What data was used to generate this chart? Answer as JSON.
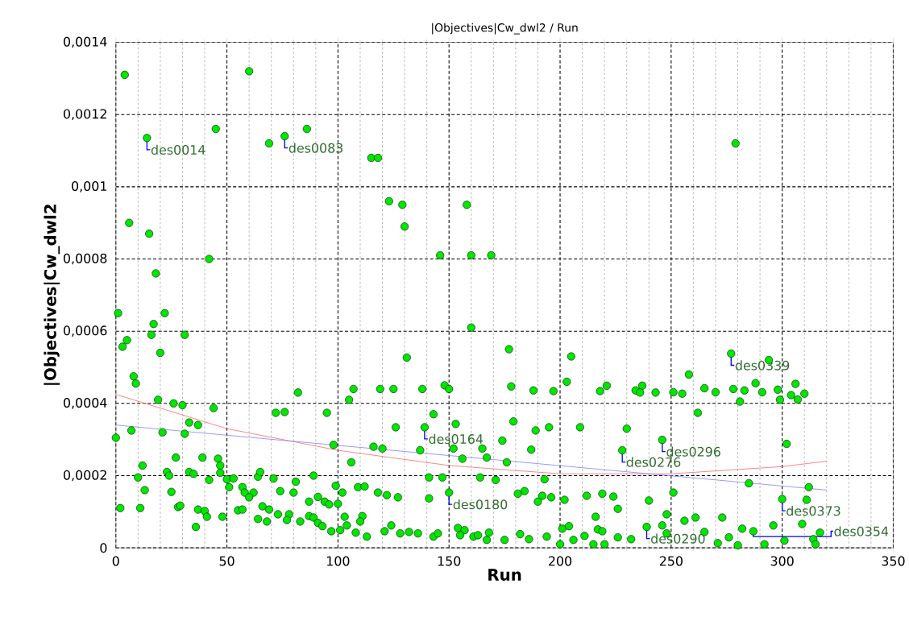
{
  "chart_data": {
    "type": "scatter",
    "title": "|Objectives|Cw_dwl2 / Run",
    "xlabel": "Run",
    "ylabel": "|Objectives|Cw_dwl2",
    "xlim": [
      0,
      350
    ],
    "xticks": [
      0,
      50,
      100,
      150,
      200,
      250,
      300,
      350
    ],
    "ylim": [
      0,
      0.0014
    ],
    "yticks": [
      {
        "value": 0,
        "label": "0"
      },
      {
        "value": 0.0002,
        "label": "0,0002"
      },
      {
        "value": 0.0004,
        "label": "0,0004"
      },
      {
        "value": 0.0006,
        "label": "0,0006"
      },
      {
        "value": 0.0008,
        "label": "0,0008"
      },
      {
        "value": 0.001,
        "label": "0,001"
      },
      {
        "value": 0.0012,
        "label": "0,0012"
      },
      {
        "value": 0.0014,
        "label": "0,0014"
      }
    ],
    "grid": true,
    "series": [
      {
        "color": "#00e600",
        "x": [
          4,
          60,
          45,
          86,
          69,
          279,
          14,
          76,
          115,
          118,
          123,
          129,
          130,
          6,
          15,
          42,
          146,
          158,
          160,
          169,
          18,
          1,
          22,
          17,
          16,
          31,
          160,
          5,
          3,
          20,
          131,
          177,
          8,
          9,
          82,
          107,
          119,
          125,
          138,
          148,
          150,
          19,
          26,
          30,
          44,
          105,
          72,
          76,
          95,
          143,
          33,
          37,
          126,
          153,
          139,
          0,
          7,
          21,
          31,
          98,
          116,
          120,
          137,
          152,
          165,
          174,
          167,
          156,
          176,
          27,
          39,
          46,
          47,
          12,
          106,
          10,
          23,
          24,
          33,
          35,
          47,
          50,
          53,
          42,
          64,
          65,
          71,
          89,
          81,
          141,
          147,
          164,
          171,
          99,
          109,
          112,
          13,
          25,
          51,
          57,
          58,
          62,
          74,
          80,
          102,
          118,
          122,
          127,
          150,
          60,
          141,
          91,
          87,
          94,
          100,
          96,
          2,
          11,
          28,
          29,
          37,
          40,
          41,
          55,
          57,
          48,
          66,
          69,
          73,
          78,
          77,
          64,
          68,
          83,
          87,
          89,
          91,
          93,
          36,
          103,
          111,
          110,
          104,
          124,
          154,
          157,
          97,
          101,
          108,
          113,
          121,
          128,
          132,
          136,
          143,
          145,
          155,
          161,
          163,
          167,
          168,
          175,
          205,
          258,
          277,
          294,
          178,
          188,
          197,
          203,
          218,
          221,
          234,
          237,
          236,
          243,
          251,
          255,
          265,
          270,
          278,
          283,
          288,
          291,
          298,
          299,
          281,
          306,
          304,
          307,
          310,
          262,
          179,
          189,
          195,
          209,
          230,
          246,
          228,
          302,
          187,
          285,
          312,
          311,
          300,
          251,
          240,
          193,
          184,
          181,
          192,
          196,
          202,
          212,
          219,
          224,
          226,
          190,
          216,
          248,
          182,
          186,
          194,
          200,
          206,
          211,
          215,
          217,
          219,
          220,
          226,
          232,
          201,
          204,
          239,
          246,
          248,
          261,
          265,
          271,
          276,
          280,
          292,
          296,
          301,
          309,
          314,
          315,
          317,
          282,
          287,
          256,
          273
        ],
        "values": [
          0.00131,
          0.00132,
          0.00116,
          0.00116,
          0.00112,
          0.00112,
          0.001135,
          0.00114,
          0.00108,
          0.00108,
          0.00096,
          0.00095,
          0.00089,
          0.0009,
          0.00087,
          0.0008,
          0.00081,
          0.00095,
          0.00081,
          0.00081,
          0.00076,
          0.00065,
          0.00065,
          0.00062,
          0.00059,
          0.00059,
          0.00061,
          0.000575,
          0.000557,
          0.00054,
          0.000527,
          0.00055,
          0.000475,
          0.000455,
          0.00043,
          0.00044,
          0.00044,
          0.00044,
          0.00044,
          0.00045,
          0.00044,
          0.00041,
          0.0004,
          0.000395,
          0.000387,
          0.00041,
          0.000374,
          0.000376,
          0.000374,
          0.00037,
          0.000347,
          0.00034,
          0.000334,
          0.000343,
          0.000334,
          0.000305,
          0.000325,
          0.00032,
          0.000316,
          0.000285,
          0.00028,
          0.000275,
          0.00027,
          0.000275,
          0.000275,
          0.000297,
          0.00025,
          0.000247,
          0.000237,
          0.00025,
          0.00025,
          0.000247,
          0.000228,
          0.000228,
          0.000237,
          0.000195,
          0.00021,
          0.0002,
          0.00021,
          0.000205,
          0.000208,
          0.00019,
          0.000192,
          0.000188,
          0.000197,
          0.00021,
          0.000192,
          0.0002,
          0.000183,
          0.000195,
          0.000195,
          0.000195,
          0.000188,
          0.000172,
          0.000168,
          0.00017,
          0.00016,
          0.000155,
          0.000168,
          0.000168,
          0.000153,
          0.000153,
          0.000157,
          0.000153,
          0.000153,
          0.000153,
          0.000146,
          0.00014,
          0.000153,
          0.00014,
          0.000137,
          0.000141,
          0.000128,
          0.000128,
          0.000122,
          0.00012,
          0.00011,
          0.00011,
          0.000113,
          0.000117,
          0.000106,
          0.000102,
          8.6e-05,
          0.000104,
          0.000106,
          8.6e-05,
          0.000115,
          0.000106,
          9.3e-05,
          9.3e-05,
          7.7e-05,
          8e-05,
          7.3e-05,
          7.3e-05,
          8.8e-05,
          8.4e-05,
          6.9e-05,
          6e-05,
          5.8e-05,
          8.6e-05,
          8.8e-05,
          7.3e-05,
          6.2e-05,
          6.2e-05,
          5.5e-05,
          4.9e-05,
          4.6e-05,
          4.9e-05,
          4.2e-05,
          3.1e-05,
          4.6e-05,
          4e-05,
          4.4e-05,
          4e-05,
          3.1e-05,
          4e-05,
          3.5e-05,
          3.1e-05,
          3.5e-05,
          2.2e-05,
          4.2e-05,
          2.2e-05,
          0.00053,
          0.00048,
          0.000538,
          0.00052,
          0.000447,
          0.000436,
          0.000434,
          0.00046,
          0.000434,
          0.000449,
          0.000436,
          0.000449,
          0.00043,
          0.00043,
          0.000431,
          0.000427,
          0.000442,
          0.000431,
          0.00044,
          0.000436,
          0.000456,
          0.000431,
          0.000438,
          0.00041,
          0.000405,
          0.000454,
          0.000423,
          0.000411,
          0.000427,
          0.000374,
          0.00035,
          0.000325,
          0.000334,
          0.000334,
          0.00033,
          0.000299,
          0.00027,
          0.000288,
          0.000272,
          0.000179,
          0.000168,
          0.000133,
          0.000135,
          0.000153,
          0.000131,
          0.00019,
          0.000157,
          0.00015,
          0.000144,
          0.00014,
          0.000133,
          0.000144,
          0.00015,
          0.000142,
          0.000108,
          0.000128,
          8.6e-05,
          9.3e-05,
          3.8e-05,
          2.4e-05,
          3.1e-05,
          1e-05,
          2.2e-05,
          3.3e-05,
          1e-05,
          5.1e-05,
          4.6e-05,
          1e-05,
          2.9e-05,
          2.4e-05,
          5.3e-05,
          6e-05,
          5.8e-05,
          6.2e-05,
          4e-05,
          8.4e-05,
          4.4e-05,
          1.3e-05,
          2.9e-05,
          7e-06,
          1e-05,
          6.2e-05,
          2e-05,
          6.6e-05,
          2.4e-05,
          1e-05,
          4.2e-05,
          5.3e-05,
          4.6e-05,
          7.5e-05,
          8.4e-05
        ]
      },
      {
        "type": "line",
        "color": "#ff6666",
        "x": [
          0,
          50,
          100,
          150,
          200,
          250,
          300,
          320
        ],
        "values": [
          0.000425,
          0.00033,
          0.00027,
          0.000228,
          0.000205,
          0.000205,
          0.000225,
          0.00024
        ]
      },
      {
        "type": "line",
        "color": "#8080ff",
        "x": [
          0,
          320
        ],
        "values": [
          0.00034,
          0.00016
        ]
      }
    ],
    "annotations": [
      {
        "text": "des0014",
        "x": 14,
        "y": 0.001135
      },
      {
        "text": "des0083",
        "x": 76,
        "y": 0.00114
      },
      {
        "text": "des0339",
        "x": 277,
        "y": 0.000538
      },
      {
        "text": "des0164",
        "x": 139,
        "y": 0.000334
      },
      {
        "text": "des0296",
        "x": 246,
        "y": 0.000299
      },
      {
        "text": "des0276",
        "x": 228,
        "y": 0.00027
      },
      {
        "text": "des0180",
        "x": 150,
        "y": 0.000153
      },
      {
        "text": "des0373",
        "x": 300,
        "y": 0.000135
      },
      {
        "text": "des0290",
        "x": 239,
        "y": 5.8e-05
      },
      {
        "text": "des0354",
        "x": 287,
        "y": 4.6e-05
      }
    ]
  }
}
